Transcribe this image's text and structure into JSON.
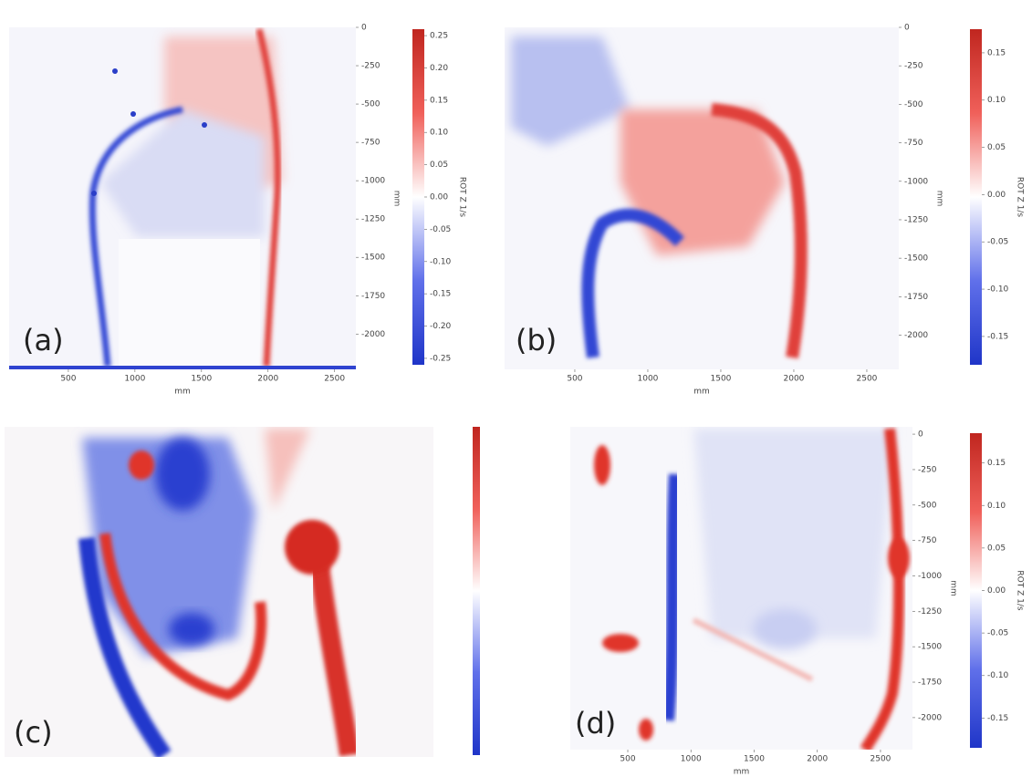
{
  "chart_data": [
    {
      "type": "heatmap",
      "panel_label": "(a)",
      "x_label": "mm",
      "y_label": "mm",
      "xlim": [
        55,
        2660
      ],
      "xticks": [
        500,
        1000,
        1500,
        2000,
        2500
      ],
      "ylim": [
        0,
        -2230
      ],
      "yticks": [
        0,
        -250,
        -500,
        -750,
        -1000,
        -1250,
        -1500,
        -1750,
        -2000
      ],
      "colorbar": {
        "label": "ROT Z 1/s",
        "lim": [
          -0.26,
          0.26
        ],
        "ticks": [
          0.25,
          {
            "value": 0.2,
            "label": "0.20"
          },
          0.15,
          {
            "value": 0.1,
            "label": "0.10"
          },
          0.05,
          {
            "value": 0,
            "label": "0.00"
          },
          -0.05,
          {
            "value": -0.1,
            "label": "-0.10"
          },
          -0.15,
          {
            "value": -0.2,
            "label": "-0.20"
          },
          -0.25
        ]
      }
    },
    {
      "type": "heatmap",
      "panel_label": "(b)",
      "x_label": "mm",
      "y_label": "mm",
      "xlim": [
        19,
        2719
      ],
      "xticks": [
        500,
        1000,
        1500,
        2000,
        2500
      ],
      "ylim": [
        0,
        -2222
      ],
      "yticks": [
        0,
        -250,
        -500,
        -750,
        -1000,
        -1250,
        -1500,
        -1750,
        -2000
      ],
      "colorbar": {
        "label": "ROT Z 1/s",
        "lim": [
          -0.18,
          0.175
        ],
        "ticks": [
          0.15,
          {
            "value": 0.1,
            "label": "0.10"
          },
          0.05,
          {
            "value": 0,
            "label": "0.00"
          },
          -0.05,
          {
            "value": -0.1,
            "label": "-0.10"
          },
          -0.15
        ]
      }
    },
    {
      "type": "heatmap",
      "panel_label": "(c)"
    },
    {
      "type": "heatmap",
      "panel_label": "(d)",
      "x_label": "mm",
      "y_label": "mm",
      "xlim": [
        45,
        2753
      ],
      "xticks": [
        500,
        1000,
        1500,
        2000,
        2500
      ],
      "ylim": [
        52,
        -2226
      ],
      "yticks": [
        0,
        -250,
        -500,
        -750,
        -1000,
        -1250,
        -1500,
        -1750,
        -2000
      ],
      "colorbar": {
        "label": "ROT Z 1/s",
        "lim": [
          -0.185,
          0.185
        ],
        "ticks": [
          0.15,
          {
            "value": 0.1,
            "label": "0.10"
          },
          0.05,
          {
            "value": 0,
            "label": "0.00"
          },
          -0.05,
          {
            "value": -0.1,
            "label": "-0.10"
          },
          -0.15
        ]
      }
    }
  ]
}
